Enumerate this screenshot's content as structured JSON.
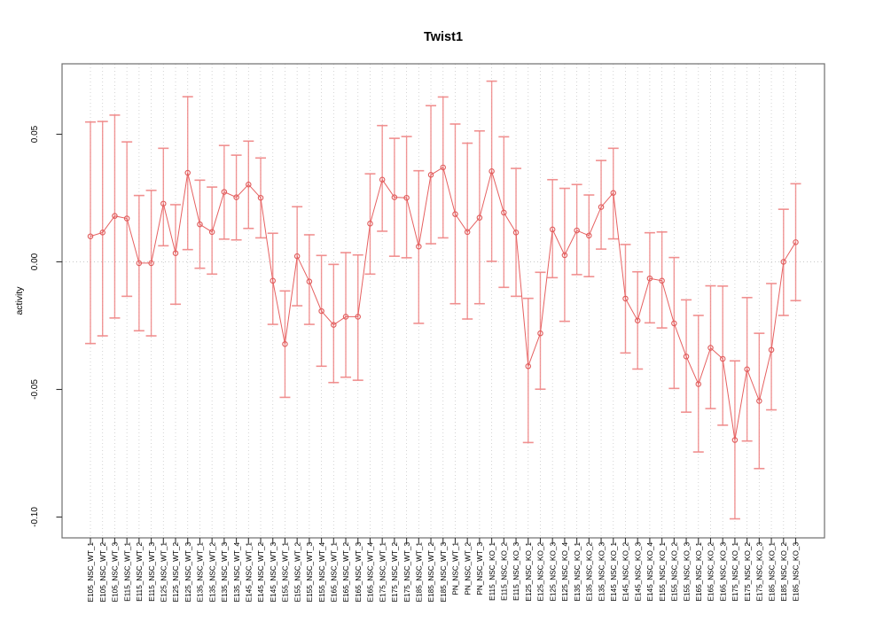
{
  "figure": {
    "title": "Twist1",
    "ylabel": "activity"
  },
  "chart_data": {
    "type": "line",
    "subtype": "points-with-error-bars",
    "title": "Twist1",
    "xlabel": "",
    "ylabel": "activity",
    "ylim": [
      -0.108,
      0.078
    ],
    "yticks": [
      {
        "label": "0.05",
        "value": 0.05
      },
      {
        "label": "0.00",
        "value": 0.0
      },
      {
        "label": "-0.05",
        "value": -0.05
      },
      {
        "label": "-0.10",
        "value": -0.1
      }
    ],
    "grid": {
      "vertical_dotted_per_category": true,
      "horizontal_zero_line_dotted": true
    },
    "legend": "none",
    "marker": "open-circle",
    "colors": {
      "series": "#e66060",
      "marker": "#e05c5c",
      "error_bar": "#ef8585",
      "grid": "#c9c9c9",
      "axis_box": "#6e6e6e",
      "tick": "#333333",
      "background": "#ffffff"
    },
    "categories": [
      "E105_NSC_WT_1",
      "E105_NSC_WT_2",
      "E105_NSC_WT_3",
      "E115_NSC_WT_1",
      "E115_NSC_WT_2",
      "E115_NSC_WT_3",
      "E125_NSC_WT_1",
      "E125_NSC_WT_2",
      "E125_NSC_WT_3",
      "E135_NSC_WT_1",
      "E135_NSC_WT_2",
      "E135_NSC_WT_3",
      "E135_NSC_WT_4",
      "E145_NSC_WT_1",
      "E145_NSC_WT_2",
      "E145_NSC_WT_3",
      "E155_NSC_WT_1",
      "E155_NSC_WT_2",
      "E155_NSC_WT_3",
      "E155_NSC_WT_4",
      "E165_NSC_WT_1",
      "E165_NSC_WT_2",
      "E165_NSC_WT_3",
      "E165_NSC_WT_4",
      "E175_NSC_WT_1",
      "E175_NSC_WT_2",
      "E175_NSC_WT_3",
      "E185_NSC_WT_1",
      "E185_NSC_WT_2",
      "E185_NSC_WT_3",
      "PN_NSC_WT_1",
      "PN_NSC_WT_2",
      "PN_NSC_WT_3",
      "E115_NSC_KO_1",
      "E115_NSC_KO_2",
      "E115_NSC_KO_3",
      "E125_NSC_KO_1",
      "E125_NSC_KO_2",
      "E125_NSC_KO_3",
      "E125_NSC_KO_4",
      "E135_NSC_KO_1",
      "E135_NSC_KO_2",
      "E135_NSC_KO_3",
      "E145_NSC_KO_1",
      "E145_NSC_KO_2",
      "E145_NSC_KO_3",
      "E145_NSC_KO_4",
      "E155_NSC_KO_1",
      "E155_NSC_KO_2",
      "E155_NSC_KO_3",
      "E165_NSC_KO_1",
      "E165_NSC_KO_2",
      "E165_NSC_KO_3",
      "E175_NSC_KO_1",
      "E175_NSC_KO_2",
      "E175_NSC_KO_3",
      "E185_NSC_KO_1",
      "E185_NSC_KO_2",
      "E185_NSC_KO_3"
    ],
    "series": [
      {
        "name": "activity",
        "values": [
          0.01,
          0.0115,
          0.018,
          0.017,
          -0.0005,
          -0.0005,
          0.0228,
          0.0034,
          0.0349,
          0.0147,
          0.0117,
          0.0274,
          0.0253,
          0.0303,
          0.0251,
          -0.0074,
          -0.0322,
          0.0022,
          -0.0077,
          -0.0193,
          -0.0247,
          -0.0215,
          -0.0215,
          0.015,
          0.0322,
          0.0253,
          0.0251,
          0.006,
          0.0341,
          0.037,
          0.0187,
          0.0117,
          0.0173,
          0.0355,
          0.0193,
          0.0115,
          -0.0409,
          -0.028,
          0.0127,
          0.0026,
          0.0123,
          0.0103,
          0.0215,
          0.027,
          -0.0144,
          -0.023,
          -0.0065,
          -0.0074,
          -0.0241,
          -0.0371,
          -0.0479,
          -0.0337,
          -0.038,
          -0.0698,
          -0.0421,
          -0.0545,
          -0.0345,
          0.0,
          0.0077
        ],
        "err_lo": [
          -0.032,
          -0.029,
          -0.022,
          -0.0135,
          -0.027,
          -0.029,
          0.0063,
          -0.0166,
          0.0048,
          -0.0025,
          -0.0048,
          0.0089,
          0.0086,
          0.0131,
          0.0094,
          -0.0245,
          -0.0531,
          -0.0172,
          -0.0245,
          -0.0409,
          -0.0473,
          -0.0452,
          -0.0464,
          -0.0048,
          0.012,
          0.0022,
          0.0016,
          -0.0241,
          0.0071,
          0.0094,
          -0.0164,
          -0.0224,
          -0.0164,
          0.0002,
          -0.01,
          -0.0135,
          -0.0708,
          -0.0499,
          -0.0062,
          -0.0233,
          -0.005,
          -0.0058,
          0.005,
          0.009,
          -0.0357,
          -0.042,
          -0.0239,
          -0.0259,
          -0.0496,
          -0.0589,
          -0.0745,
          -0.0575,
          -0.064,
          -0.1007,
          -0.0702,
          -0.081,
          -0.058,
          -0.021,
          -0.0152
        ],
        "err_hi": [
          0.0548,
          0.055,
          0.0575,
          0.047,
          0.026,
          0.028,
          0.0445,
          0.0224,
          0.0647,
          0.032,
          0.0293,
          0.0456,
          0.0418,
          0.0473,
          0.0407,
          0.0112,
          -0.0114,
          0.0216,
          0.0106,
          0.0025,
          -0.001,
          0.0036,
          0.0027,
          0.0345,
          0.0534,
          0.0484,
          0.0491,
          0.0357,
          0.0612,
          0.0646,
          0.054,
          0.0465,
          0.0513,
          0.0708,
          0.049,
          0.0366,
          -0.0143,
          -0.0041,
          0.0322,
          0.0288,
          0.0303,
          0.0262,
          0.0397,
          0.0445,
          0.0068,
          -0.0039,
          0.0114,
          0.0117,
          0.0017,
          -0.0149,
          -0.021,
          -0.0094,
          -0.0095,
          -0.0388,
          -0.014,
          -0.028,
          -0.0085,
          0.0206,
          0.0306
        ]
      }
    ]
  }
}
